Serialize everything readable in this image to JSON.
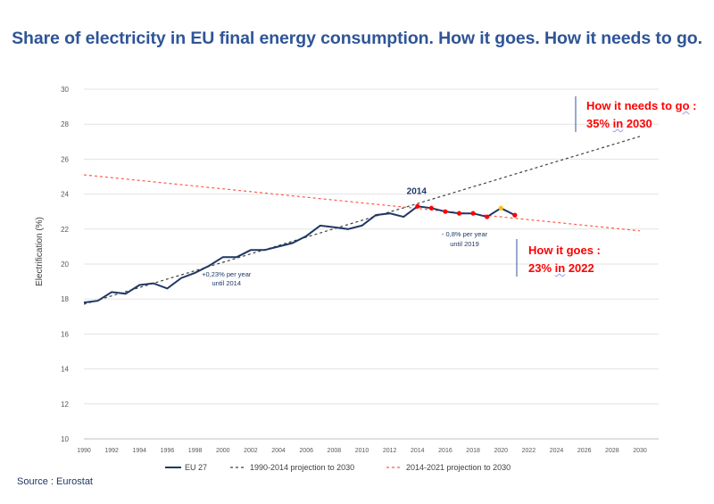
{
  "title": "Share of electricity in EU final energy consumption. How it goes. How it needs to go.",
  "source": "Source : Eurostat",
  "colors": {
    "title": "#2f5597",
    "eu27": "#1f3864",
    "projection_1990_2014": "#404040",
    "projection_2014_2021": "#ff5a4a",
    "markers": "#ff0000",
    "marker_2020": "#ffc000",
    "callout": "#ff0000"
  },
  "callouts": {
    "need_line1_a": "How it needs to ",
    "need_line1_b": "go",
    "need_line1_c": " :",
    "need_line2_a": "35% ",
    "need_line2_b": "in",
    "need_line2_c": " 2030",
    "goes_line1": "How it goes :",
    "goes_line2_a": "23% ",
    "goes_line2_b": "in",
    "goes_line2_c": " 2022"
  },
  "chart_data": {
    "type": "line",
    "title": "Share of electricity in EU final energy consumption. How it goes. How it needs to go.",
    "xlabel": "",
    "ylabel": "Electrification (%)",
    "xlim": [
      1990,
      2030
    ],
    "ylim": [
      10,
      30
    ],
    "x_ticks": [
      "1990",
      "1992",
      "1994",
      "1996",
      "1998",
      "2000",
      "2002",
      "2004",
      "2006",
      "2008",
      "2010",
      "2012",
      "2014",
      "2016",
      "2018",
      "2020",
      "2022",
      "2024",
      "2026",
      "2028",
      "2030"
    ],
    "y_ticks": [
      10,
      12,
      14,
      16,
      18,
      20,
      22,
      24,
      26,
      28,
      30
    ],
    "grid": "horizontal",
    "series": [
      {
        "name": "EU 27",
        "style": "solid",
        "x": [
          1990,
          1991,
          1992,
          1993,
          1994,
          1995,
          1996,
          1997,
          1998,
          1999,
          2000,
          2001,
          2002,
          2003,
          2004,
          2005,
          2006,
          2007,
          2008,
          2009,
          2010,
          2011,
          2012,
          2013,
          2014,
          2015,
          2016,
          2017,
          2018,
          2019,
          2020,
          2021
        ],
        "values": [
          17.8,
          17.9,
          18.4,
          18.3,
          18.8,
          18.9,
          18.6,
          19.2,
          19.5,
          19.9,
          20.4,
          20.4,
          20.8,
          20.8,
          21.0,
          21.2,
          21.6,
          22.2,
          22.1,
          22.0,
          22.2,
          22.8,
          22.9,
          22.7,
          23.3,
          23.2,
          23.0,
          22.9,
          22.9,
          22.7,
          23.2,
          22.8
        ]
      },
      {
        "name": "1990-2014 projection to 2030",
        "style": "dashed",
        "x": [
          1990,
          2030
        ],
        "values": [
          17.7,
          27.3
        ]
      },
      {
        "name": "2014-2021 projection to 2030",
        "style": "dashed",
        "x": [
          1990,
          2030
        ],
        "values": [
          25.1,
          21.9
        ]
      }
    ],
    "markers": {
      "x": [
        2014,
        2015,
        2016,
        2017,
        2018,
        2019,
        2020,
        2021
      ],
      "values": [
        23.3,
        23.2,
        23.0,
        22.9,
        22.9,
        22.7,
        23.2,
        22.8
      ],
      "highlight_x": 2020
    },
    "legend": [
      "EU 27",
      "1990-2014 projection to 2030",
      "2014-2021 projection to 2030"
    ],
    "legend_position": "bottom",
    "annotations": [
      {
        "text": "2014",
        "x": 2014,
        "y": 23.3
      },
      {
        "text": "+0,23% per year",
        "x": 2000,
        "y": 19.5
      },
      {
        "text": "until 2014",
        "x": 2000,
        "y": 19.0
      },
      {
        "text": "- 0,8% per year",
        "x": 2017,
        "y": 22.0
      },
      {
        "text": "until 2019",
        "x": 2017,
        "y": 21.5
      }
    ]
  }
}
